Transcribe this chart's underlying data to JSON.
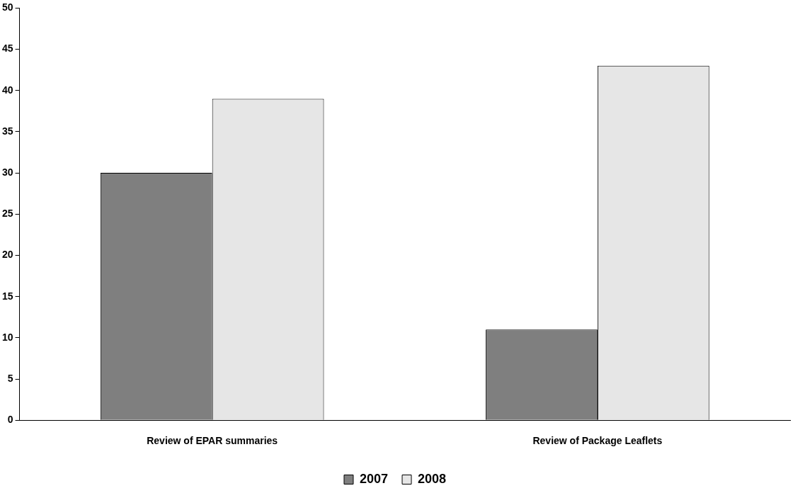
{
  "chart_data": {
    "type": "bar",
    "categories": [
      "Review of EPAR summaries",
      "Review of Package Leaflets"
    ],
    "series": [
      {
        "name": "2007",
        "color": "#7f7f7f",
        "values": [
          30,
          11
        ]
      },
      {
        "name": "2008",
        "color": "#e6e6e6",
        "values": [
          39,
          43
        ]
      }
    ],
    "ylim": [
      0,
      50
    ],
    "yticks": [
      0,
      5,
      10,
      15,
      20,
      25,
      30,
      35,
      40,
      45,
      50
    ],
    "grid": false,
    "legend": "bottom"
  }
}
